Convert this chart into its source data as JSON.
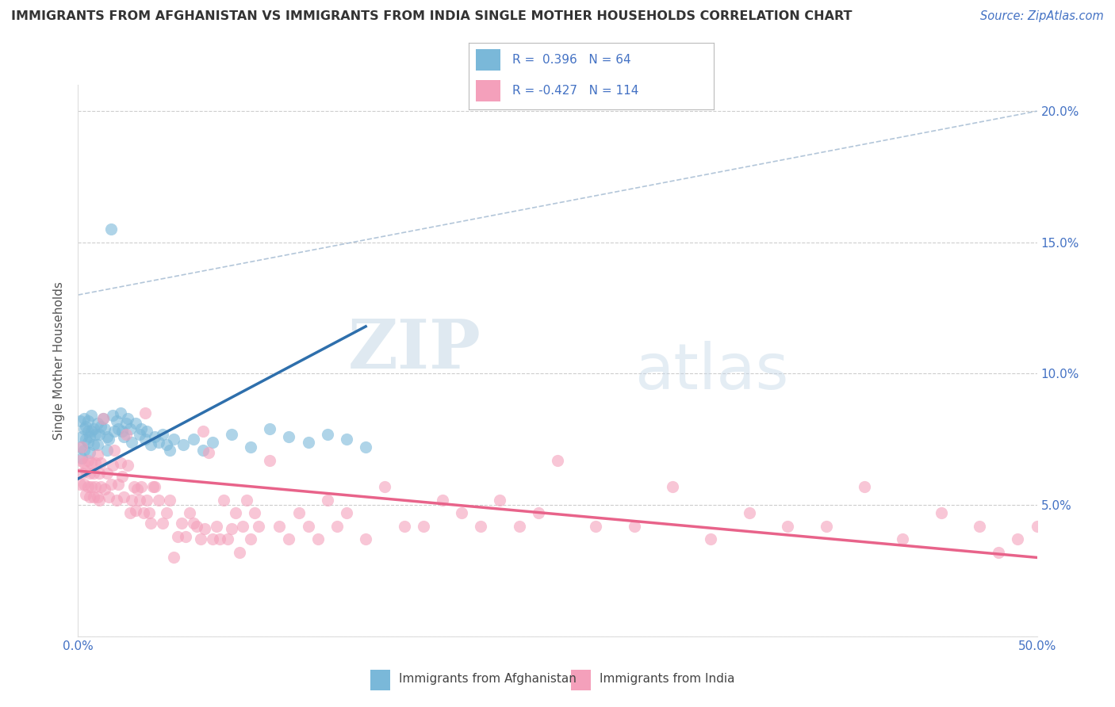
{
  "title": "IMMIGRANTS FROM AFGHANISTAN VS IMMIGRANTS FROM INDIA SINGLE MOTHER HOUSEHOLDS CORRELATION CHART",
  "source": "Source: ZipAtlas.com",
  "ylabel": "Single Mother Households",
  "xlim": [
    0.0,
    0.5
  ],
  "ylim": [
    0.0,
    0.21
  ],
  "xticks": [
    0.0,
    0.1,
    0.2,
    0.3,
    0.4,
    0.5
  ],
  "yticks": [
    0.0,
    0.05,
    0.1,
    0.15,
    0.2
  ],
  "xticklabels": [
    "0.0%",
    "",
    "",
    "",
    "",
    "50.0%"
  ],
  "yticklabels": [
    "",
    "5.0%",
    "10.0%",
    "15.0%",
    "20.0%"
  ],
  "afghanistan_color": "#7ab8d9",
  "india_color": "#f4a0bb",
  "afghanistan_r": 0.396,
  "afghanistan_n": 64,
  "india_r": -0.427,
  "india_n": 114,
  "watermark_zip": "ZIP",
  "watermark_atlas": "atlas",
  "background_color": "#ffffff",
  "grid_color": "#c8c8c8",
  "afghanistan_line_color": "#2e6fac",
  "india_line_color": "#e8638a",
  "diag_line_color": "#a0b8d0",
  "afghanistan_scatter": [
    [
      0.001,
      0.082
    ],
    [
      0.001,
      0.072
    ],
    [
      0.002,
      0.076
    ],
    [
      0.002,
      0.068
    ],
    [
      0.003,
      0.079
    ],
    [
      0.003,
      0.071
    ],
    [
      0.003,
      0.083
    ],
    [
      0.004,
      0.075
    ],
    [
      0.004,
      0.08
    ],
    [
      0.005,
      0.074
    ],
    [
      0.005,
      0.078
    ],
    [
      0.005,
      0.082
    ],
    [
      0.006,
      0.076
    ],
    [
      0.006,
      0.07
    ],
    [
      0.007,
      0.078
    ],
    [
      0.007,
      0.084
    ],
    [
      0.008,
      0.073
    ],
    [
      0.008,
      0.079
    ],
    [
      0.009,
      0.077
    ],
    [
      0.01,
      0.081
    ],
    [
      0.01,
      0.073
    ],
    [
      0.011,
      0.077
    ],
    [
      0.012,
      0.08
    ],
    [
      0.013,
      0.083
    ],
    [
      0.014,
      0.079
    ],
    [
      0.015,
      0.076
    ],
    [
      0.015,
      0.071
    ],
    [
      0.016,
      0.075
    ],
    [
      0.017,
      0.155
    ],
    [
      0.018,
      0.084
    ],
    [
      0.019,
      0.078
    ],
    [
      0.02,
      0.082
    ],
    [
      0.021,
      0.079
    ],
    [
      0.022,
      0.085
    ],
    [
      0.023,
      0.078
    ],
    [
      0.024,
      0.076
    ],
    [
      0.025,
      0.081
    ],
    [
      0.026,
      0.083
    ],
    [
      0.027,
      0.079
    ],
    [
      0.028,
      0.074
    ],
    [
      0.03,
      0.081
    ],
    [
      0.032,
      0.077
    ],
    [
      0.033,
      0.079
    ],
    [
      0.035,
      0.075
    ],
    [
      0.036,
      0.078
    ],
    [
      0.038,
      0.073
    ],
    [
      0.04,
      0.076
    ],
    [
      0.042,
      0.074
    ],
    [
      0.044,
      0.077
    ],
    [
      0.046,
      0.073
    ],
    [
      0.048,
      0.071
    ],
    [
      0.05,
      0.075
    ],
    [
      0.055,
      0.073
    ],
    [
      0.06,
      0.075
    ],
    [
      0.065,
      0.071
    ],
    [
      0.07,
      0.074
    ],
    [
      0.08,
      0.077
    ],
    [
      0.09,
      0.072
    ],
    [
      0.1,
      0.079
    ],
    [
      0.11,
      0.076
    ],
    [
      0.12,
      0.074
    ],
    [
      0.13,
      0.077
    ],
    [
      0.14,
      0.075
    ],
    [
      0.15,
      0.072
    ]
  ],
  "india_scatter": [
    [
      0.001,
      0.067
    ],
    [
      0.001,
      0.058
    ],
    [
      0.002,
      0.072
    ],
    [
      0.002,
      0.062
    ],
    [
      0.003,
      0.066
    ],
    [
      0.003,
      0.058
    ],
    [
      0.004,
      0.063
    ],
    [
      0.004,
      0.054
    ],
    [
      0.005,
      0.067
    ],
    [
      0.005,
      0.057
    ],
    [
      0.006,
      0.062
    ],
    [
      0.006,
      0.053
    ],
    [
      0.007,
      0.066
    ],
    [
      0.007,
      0.057
    ],
    [
      0.008,
      0.062
    ],
    [
      0.008,
      0.053
    ],
    [
      0.009,
      0.066
    ],
    [
      0.009,
      0.057
    ],
    [
      0.01,
      0.069
    ],
    [
      0.01,
      0.053
    ],
    [
      0.011,
      0.062
    ],
    [
      0.011,
      0.052
    ],
    [
      0.012,
      0.066
    ],
    [
      0.012,
      0.057
    ],
    [
      0.013,
      0.083
    ],
    [
      0.014,
      0.056
    ],
    [
      0.015,
      0.062
    ],
    [
      0.016,
      0.053
    ],
    [
      0.017,
      0.058
    ],
    [
      0.018,
      0.065
    ],
    [
      0.019,
      0.071
    ],
    [
      0.02,
      0.052
    ],
    [
      0.021,
      0.058
    ],
    [
      0.022,
      0.066
    ],
    [
      0.023,
      0.061
    ],
    [
      0.024,
      0.053
    ],
    [
      0.025,
      0.077
    ],
    [
      0.026,
      0.065
    ],
    [
      0.027,
      0.047
    ],
    [
      0.028,
      0.052
    ],
    [
      0.029,
      0.057
    ],
    [
      0.03,
      0.048
    ],
    [
      0.031,
      0.056
    ],
    [
      0.032,
      0.052
    ],
    [
      0.033,
      0.057
    ],
    [
      0.034,
      0.047
    ],
    [
      0.035,
      0.085
    ],
    [
      0.036,
      0.052
    ],
    [
      0.037,
      0.047
    ],
    [
      0.038,
      0.043
    ],
    [
      0.039,
      0.057
    ],
    [
      0.04,
      0.057
    ],
    [
      0.042,
      0.052
    ],
    [
      0.044,
      0.043
    ],
    [
      0.046,
      0.047
    ],
    [
      0.048,
      0.052
    ],
    [
      0.05,
      0.03
    ],
    [
      0.052,
      0.038
    ],
    [
      0.054,
      0.043
    ],
    [
      0.056,
      0.038
    ],
    [
      0.058,
      0.047
    ],
    [
      0.06,
      0.043
    ],
    [
      0.062,
      0.042
    ],
    [
      0.064,
      0.037
    ],
    [
      0.065,
      0.078
    ],
    [
      0.066,
      0.041
    ],
    [
      0.068,
      0.07
    ],
    [
      0.07,
      0.037
    ],
    [
      0.072,
      0.042
    ],
    [
      0.074,
      0.037
    ],
    [
      0.076,
      0.052
    ],
    [
      0.078,
      0.037
    ],
    [
      0.08,
      0.041
    ],
    [
      0.082,
      0.047
    ],
    [
      0.084,
      0.032
    ],
    [
      0.086,
      0.042
    ],
    [
      0.088,
      0.052
    ],
    [
      0.09,
      0.037
    ],
    [
      0.092,
      0.047
    ],
    [
      0.094,
      0.042
    ],
    [
      0.1,
      0.067
    ],
    [
      0.105,
      0.042
    ],
    [
      0.11,
      0.037
    ],
    [
      0.115,
      0.047
    ],
    [
      0.12,
      0.042
    ],
    [
      0.125,
      0.037
    ],
    [
      0.13,
      0.052
    ],
    [
      0.135,
      0.042
    ],
    [
      0.14,
      0.047
    ],
    [
      0.15,
      0.037
    ],
    [
      0.16,
      0.057
    ],
    [
      0.17,
      0.042
    ],
    [
      0.18,
      0.042
    ],
    [
      0.19,
      0.052
    ],
    [
      0.2,
      0.047
    ],
    [
      0.21,
      0.042
    ],
    [
      0.22,
      0.052
    ],
    [
      0.23,
      0.042
    ],
    [
      0.24,
      0.047
    ],
    [
      0.25,
      0.067
    ],
    [
      0.27,
      0.042
    ],
    [
      0.29,
      0.042
    ],
    [
      0.31,
      0.057
    ],
    [
      0.33,
      0.037
    ],
    [
      0.35,
      0.047
    ],
    [
      0.37,
      0.042
    ],
    [
      0.39,
      0.042
    ],
    [
      0.41,
      0.057
    ],
    [
      0.43,
      0.037
    ],
    [
      0.45,
      0.047
    ],
    [
      0.47,
      0.042
    ],
    [
      0.49,
      0.037
    ],
    [
      0.5,
      0.042
    ],
    [
      0.48,
      0.032
    ]
  ]
}
